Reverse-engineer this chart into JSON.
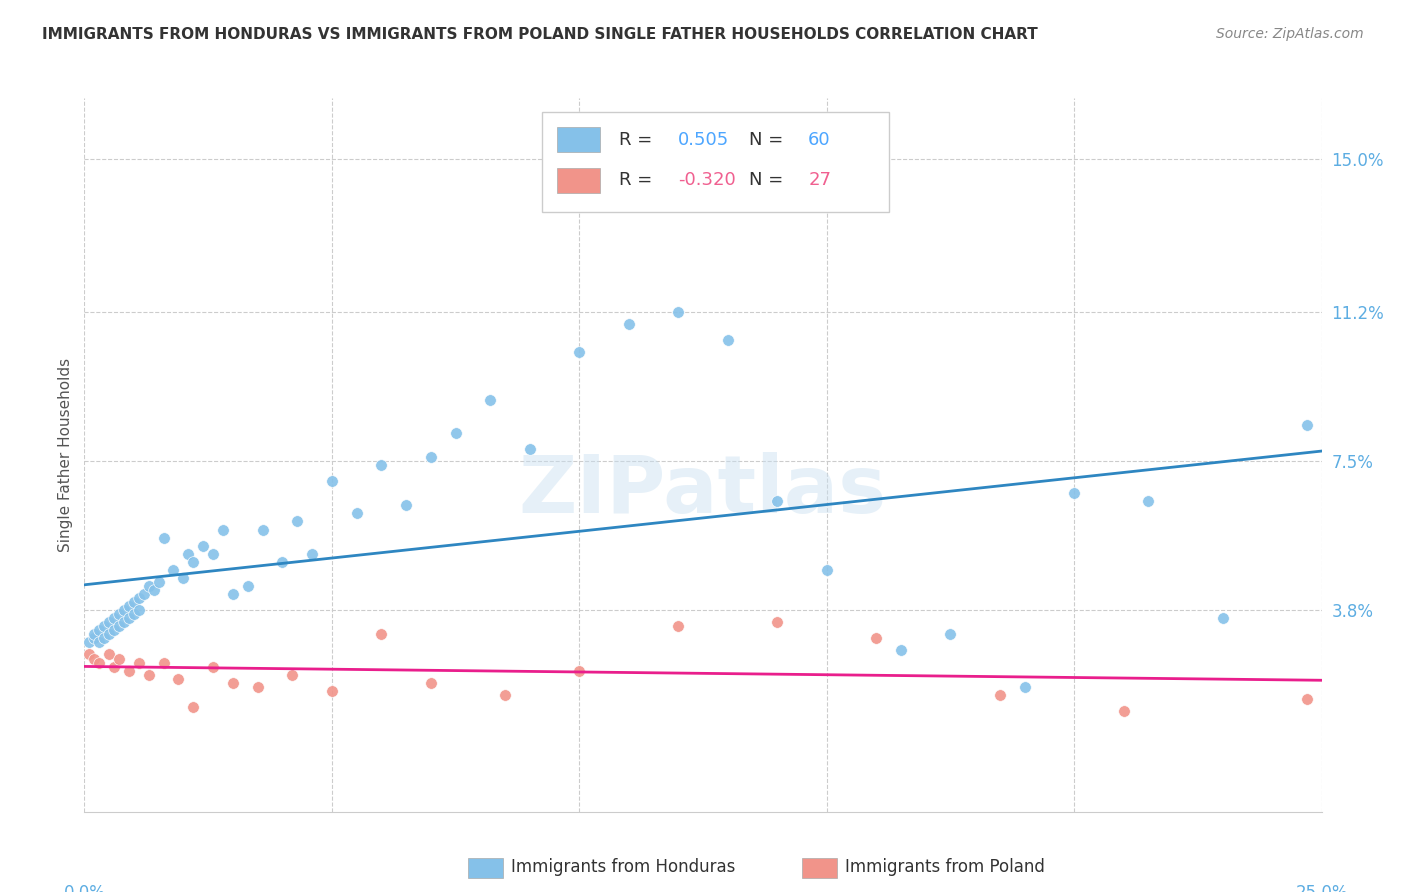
{
  "title": "IMMIGRANTS FROM HONDURAS VS IMMIGRANTS FROM POLAND SINGLE FATHER HOUSEHOLDS CORRELATION CHART",
  "source": "Source: ZipAtlas.com",
  "ylabel": "Single Father Households",
  "ytick_labels": [
    "3.8%",
    "7.5%",
    "11.2%",
    "15.0%"
  ],
  "ytick_values": [
    0.038,
    0.075,
    0.112,
    0.15
  ],
  "xlim": [
    0.0,
    0.25
  ],
  "ylim": [
    -0.012,
    0.165
  ],
  "blue_color": "#85C1E9",
  "pink_color": "#F1948A",
  "blue_line_color": "#2E86C1",
  "pink_line_color": "#E91E8C",
  "legend_label_blue": "Immigrants from Honduras",
  "legend_label_pink": "Immigrants from Poland",
  "background_color": "#ffffff",
  "grid_color": "#cccccc",
  "watermark": "ZIPatlas",
  "title_fontsize": 11,
  "source_fontsize": 10,
  "ytick_color": "#5DADE2",
  "xtick_color": "#5DADE2",
  "honduras_x": [
    0.001,
    0.002,
    0.002,
    0.003,
    0.003,
    0.004,
    0.004,
    0.005,
    0.005,
    0.006,
    0.006,
    0.007,
    0.007,
    0.008,
    0.008,
    0.009,
    0.009,
    0.01,
    0.01,
    0.011,
    0.011,
    0.012,
    0.013,
    0.014,
    0.015,
    0.016,
    0.018,
    0.02,
    0.021,
    0.022,
    0.024,
    0.026,
    0.028,
    0.03,
    0.033,
    0.036,
    0.04,
    0.043,
    0.046,
    0.05,
    0.055,
    0.06,
    0.065,
    0.07,
    0.075,
    0.082,
    0.09,
    0.1,
    0.11,
    0.12,
    0.13,
    0.14,
    0.15,
    0.165,
    0.175,
    0.19,
    0.2,
    0.215,
    0.23,
    0.247
  ],
  "honduras_y": [
    0.03,
    0.031,
    0.032,
    0.03,
    0.033,
    0.031,
    0.034,
    0.032,
    0.035,
    0.033,
    0.036,
    0.034,
    0.037,
    0.035,
    0.038,
    0.036,
    0.039,
    0.037,
    0.04,
    0.038,
    0.041,
    0.042,
    0.044,
    0.043,
    0.045,
    0.056,
    0.048,
    0.046,
    0.052,
    0.05,
    0.054,
    0.052,
    0.058,
    0.042,
    0.044,
    0.058,
    0.05,
    0.06,
    0.052,
    0.07,
    0.062,
    0.074,
    0.064,
    0.076,
    0.082,
    0.09,
    0.078,
    0.102,
    0.109,
    0.112,
    0.105,
    0.065,
    0.048,
    0.028,
    0.032,
    0.019,
    0.067,
    0.065,
    0.036,
    0.084
  ],
  "poland_x": [
    0.001,
    0.002,
    0.003,
    0.005,
    0.006,
    0.007,
    0.009,
    0.011,
    0.013,
    0.016,
    0.019,
    0.022,
    0.026,
    0.03,
    0.035,
    0.042,
    0.05,
    0.06,
    0.07,
    0.085,
    0.1,
    0.12,
    0.14,
    0.16,
    0.185,
    0.21,
    0.247
  ],
  "poland_y": [
    0.027,
    0.026,
    0.025,
    0.027,
    0.024,
    0.026,
    0.023,
    0.025,
    0.022,
    0.025,
    0.021,
    0.014,
    0.024,
    0.02,
    0.019,
    0.022,
    0.018,
    0.032,
    0.02,
    0.017,
    0.023,
    0.034,
    0.035,
    0.031,
    0.017,
    0.013,
    0.016
  ]
}
